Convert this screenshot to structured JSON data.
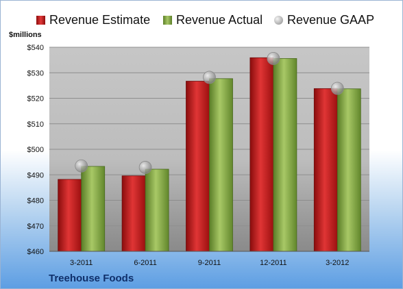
{
  "chart_data": {
    "type": "bar",
    "categories": [
      "3-2011",
      "6-2011",
      "9-2011",
      "12-2011",
      "3-2012"
    ],
    "series": [
      {
        "name": "Revenue Estimate",
        "values": [
          488.2,
          489.6,
          526.7,
          535.9,
          523.8
        ],
        "color": "#cc1f1f"
      },
      {
        "name": "Revenue Actual",
        "values": [
          493.3,
          492.2,
          527.7,
          535.6,
          523.7
        ],
        "color": "#8db04b"
      },
      {
        "name": "Revenue GAAP",
        "values": [
          493.5,
          492.9,
          528.2,
          535.6,
          523.9
        ],
        "color": "#b8b8b8",
        "marker": "circle"
      }
    ],
    "ylabel": "$millions",
    "ylim": [
      460,
      540
    ],
    "yticks": [
      "$460",
      "$470",
      "$480",
      "$490",
      "$500",
      "$510",
      "$520",
      "$530",
      "$540"
    ],
    "grid": true,
    "legend": "top"
  },
  "company": "Treehouse Foods"
}
